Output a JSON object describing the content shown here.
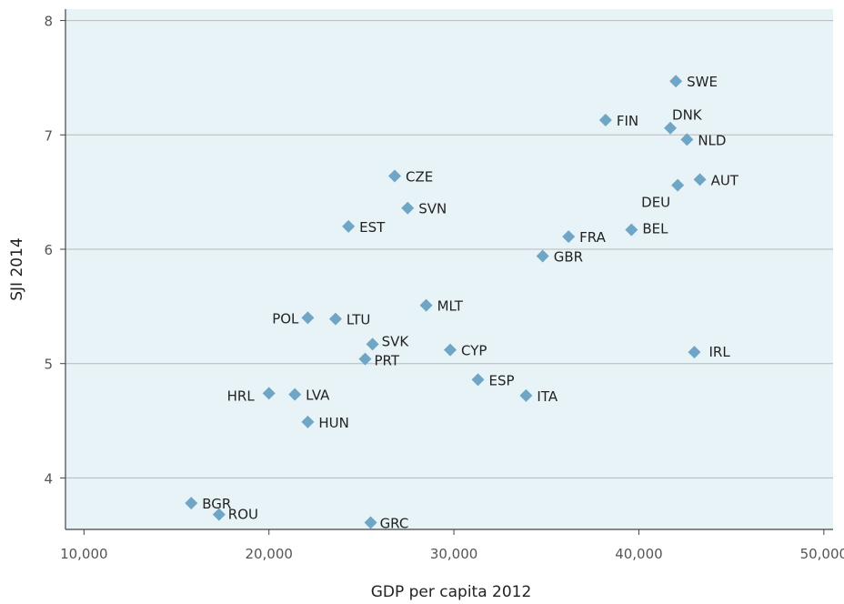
{
  "chart_data": {
    "type": "scatter",
    "xlabel": "GDP per capita 2012",
    "ylabel": "SJI 2014",
    "xlim": [
      9000,
      50500
    ],
    "ylim": [
      3.55,
      8.1
    ],
    "x_ticks": [
      10000,
      20000,
      30000,
      40000,
      50000
    ],
    "x_tick_labels": [
      "10,000",
      "20,000",
      "30,000",
      "40,000",
      "50,000"
    ],
    "y_ticks": [
      4,
      5,
      6,
      7,
      8
    ],
    "y_tick_labels": [
      "4",
      "5",
      "6",
      "7",
      "8"
    ],
    "grid": "horizontal",
    "colors": {
      "plot_background": "#e8f3f8",
      "marker": "#6fa6c6",
      "grid": "#b8b8b8"
    },
    "points": [
      {
        "label": "SWE",
        "x": 42000,
        "y": 7.47
      },
      {
        "label": "FIN",
        "x": 38200,
        "y": 7.13
      },
      {
        "label": "DNK",
        "x": 41700,
        "y": 7.06
      },
      {
        "label": "NLD",
        "x": 42600,
        "y": 6.96
      },
      {
        "label": "AUT",
        "x": 43300,
        "y": 6.61
      },
      {
        "label": "DEU",
        "x": 42100,
        "y": 6.56
      },
      {
        "label": "CZE",
        "x": 26800,
        "y": 6.64
      },
      {
        "label": "SVN",
        "x": 27500,
        "y": 6.36
      },
      {
        "label": "EST",
        "x": 24300,
        "y": 6.2
      },
      {
        "label": "BEL",
        "x": 39600,
        "y": 6.17
      },
      {
        "label": "FRA",
        "x": 36200,
        "y": 6.11
      },
      {
        "label": "GBR",
        "x": 34800,
        "y": 5.94
      },
      {
        "label": "MLT",
        "x": 28500,
        "y": 5.51
      },
      {
        "label": "POL",
        "x": 22100,
        "y": 5.4
      },
      {
        "label": "LTU",
        "x": 23600,
        "y": 5.39
      },
      {
        "label": "SVK",
        "x": 25600,
        "y": 5.17
      },
      {
        "label": "CYP",
        "x": 29800,
        "y": 5.12
      },
      {
        "label": "IRL",
        "x": 43000,
        "y": 5.1
      },
      {
        "label": "PRT",
        "x": 25200,
        "y": 5.04
      },
      {
        "label": "ESP",
        "x": 31300,
        "y": 4.86
      },
      {
        "label": "HRL",
        "x": 20000,
        "y": 4.74
      },
      {
        "label": "LVA",
        "x": 21400,
        "y": 4.73
      },
      {
        "label": "ITA",
        "x": 33900,
        "y": 4.72
      },
      {
        "label": "HUN",
        "x": 22100,
        "y": 4.49
      },
      {
        "label": "BGR",
        "x": 15800,
        "y": 3.78
      },
      {
        "label": "ROU",
        "x": 17300,
        "y": 3.68
      },
      {
        "label": "GRC",
        "x": 25500,
        "y": 3.61
      }
    ]
  }
}
